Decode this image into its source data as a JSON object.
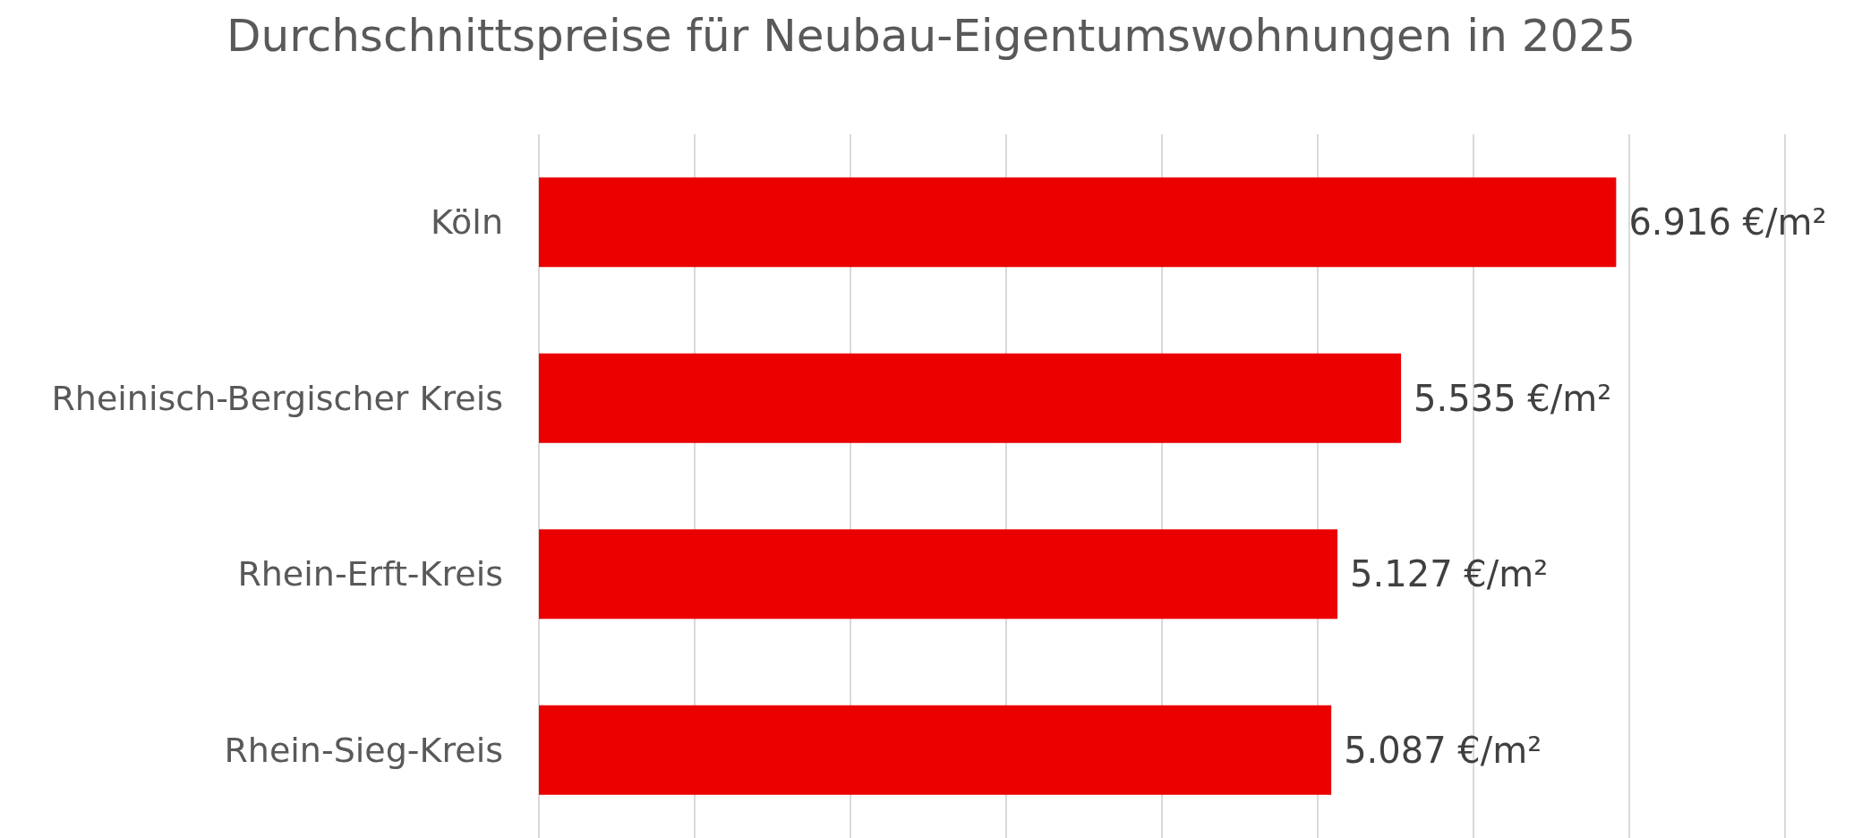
{
  "chart_data": {
    "type": "bar",
    "orientation": "horizontal",
    "title": "Durchschnittspreise für Neubau-Eigentumswohnungen in 2025",
    "categories": [
      "Köln",
      "Rheinisch-Bergischer Kreis",
      "Rhein-Erft-Kreis",
      "Rhein-Sieg-Kreis"
    ],
    "values": [
      6916,
      5535,
      5127,
      5087
    ],
    "value_labels": [
      "6.916 €/m²",
      "5.535 €/m²",
      "5.127 €/m²",
      "5.087 €/m²"
    ],
    "color": "#eb0000",
    "xlim": [
      0,
      8000
    ],
    "xticks": [
      {
        "value": 0,
        "label": null
      },
      {
        "value": 1000,
        "label": null
      },
      {
        "value": 2000,
        "label": null
      },
      {
        "value": 3000,
        "label": null
      },
      {
        "value": 4000,
        "label": null
      },
      {
        "value": 5000,
        "label": null
      },
      {
        "value": 6000,
        "label": null
      },
      {
        "value": 7000,
        "label": null
      },
      {
        "value": 8000,
        "label": null
      }
    ],
    "tick_labels": "y",
    "grid": "x"
  }
}
